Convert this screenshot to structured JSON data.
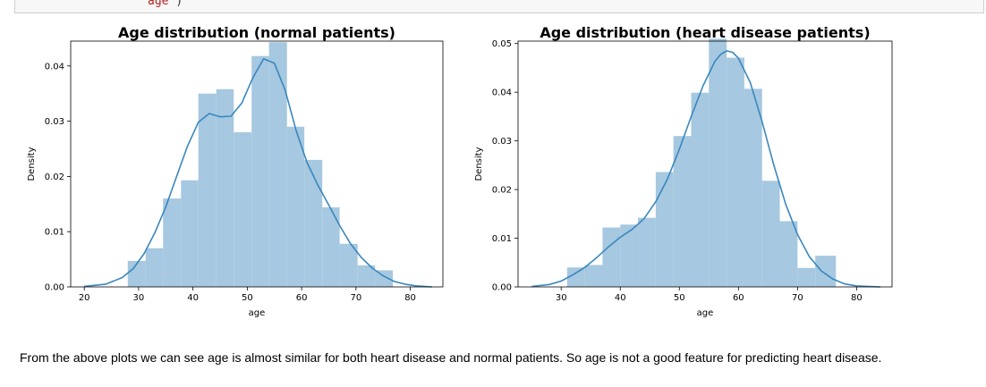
{
  "code_cell": {
    "text": "age",
    "close_paren": ")"
  },
  "conclusion": "From the above plots we can see age is almost similar for both heart disease and normal patients. So age is not a good feature for predicting heart disease.",
  "colors": {
    "bar_fill": "#a6c8e0",
    "kde_line": "#3a87bd"
  },
  "chart_data": [
    {
      "type": "bar",
      "title": "Age distribution (normal patients)",
      "xlabel": "age",
      "ylabel": "Density",
      "xlim": [
        17.5,
        86
      ],
      "ylim": [
        0,
        0.0445
      ],
      "xticks": [
        20,
        30,
        40,
        50,
        60,
        70,
        80
      ],
      "yticks": [
        0.0,
        0.01,
        0.02,
        0.03,
        0.04
      ],
      "ytick_labels": [
        "0.00",
        "0.01",
        "0.02",
        "0.03",
        "0.04"
      ],
      "bins": [
        {
          "x0": 28.0,
          "x1": 31.3,
          "value": 0.0047
        },
        {
          "x0": 31.3,
          "x1": 34.5,
          "value": 0.007
        },
        {
          "x0": 34.5,
          "x1": 37.8,
          "value": 0.016
        },
        {
          "x0": 37.8,
          "x1": 41.0,
          "value": 0.0193
        },
        {
          "x0": 41.0,
          "x1": 44.3,
          "value": 0.035
        },
        {
          "x0": 44.3,
          "x1": 47.5,
          "value": 0.0358
        },
        {
          "x0": 47.5,
          "x1": 50.8,
          "value": 0.028
        },
        {
          "x0": 50.8,
          "x1": 54.0,
          "value": 0.0418
        },
        {
          "x0": 54.0,
          "x1": 57.3,
          "value": 0.0443
        },
        {
          "x0": 57.3,
          "x1": 60.5,
          "value": 0.029
        },
        {
          "x0": 60.5,
          "x1": 63.8,
          "value": 0.023
        },
        {
          "x0": 63.8,
          "x1": 67.0,
          "value": 0.0144
        },
        {
          "x0": 67.0,
          "x1": 70.3,
          "value": 0.0078
        },
        {
          "x0": 70.3,
          "x1": 73.5,
          "value": 0.0039
        },
        {
          "x0": 73.5,
          "x1": 76.8,
          "value": 0.003
        }
      ],
      "kde": {
        "x": [
          20,
          24,
          27,
          29,
          31,
          33,
          35,
          37,
          39,
          41,
          43,
          45,
          47,
          49,
          51,
          53,
          55,
          57,
          59,
          61,
          63,
          65,
          67,
          69,
          71,
          73,
          75,
          77,
          79,
          81,
          84
        ],
        "y": [
          0.0001,
          0.0005,
          0.0017,
          0.0033,
          0.006,
          0.0098,
          0.0145,
          0.02,
          0.0255,
          0.0298,
          0.0314,
          0.0308,
          0.0309,
          0.0333,
          0.0378,
          0.0413,
          0.0405,
          0.0355,
          0.0283,
          0.0225,
          0.0184,
          0.0148,
          0.0111,
          0.0078,
          0.0053,
          0.0034,
          0.002,
          0.001,
          0.0005,
          0.0002,
          0.0
        ]
      }
    },
    {
      "type": "bar",
      "title": "Age distribution (heart disease patients)",
      "xlabel": "age",
      "ylabel": "Density",
      "xlim": [
        22.7,
        86
      ],
      "ylim": [
        0,
        0.0505
      ],
      "xticks": [
        30,
        40,
        50,
        60,
        70,
        80
      ],
      "yticks": [
        0.0,
        0.01,
        0.02,
        0.03,
        0.04,
        0.05
      ],
      "ytick_labels": [
        "0.00",
        "0.01",
        "0.02",
        "0.03",
        "0.04",
        "0.05"
      ],
      "bins": [
        {
          "x0": 31.0,
          "x1": 34.0,
          "value": 0.004
        },
        {
          "x0": 34.0,
          "x1": 37.0,
          "value": 0.0045
        },
        {
          "x0": 37.0,
          "x1": 40.0,
          "value": 0.0122
        },
        {
          "x0": 40.0,
          "x1": 43.0,
          "value": 0.0128
        },
        {
          "x0": 43.0,
          "x1": 46.0,
          "value": 0.0142
        },
        {
          "x0": 46.0,
          "x1": 49.0,
          "value": 0.0236
        },
        {
          "x0": 49.0,
          "x1": 52.0,
          "value": 0.031
        },
        {
          "x0": 52.0,
          "x1": 55.0,
          "value": 0.0399
        },
        {
          "x0": 55.0,
          "x1": 58.0,
          "value": 0.051
        },
        {
          "x0": 58.0,
          "x1": 61.0,
          "value": 0.0471
        },
        {
          "x0": 61.0,
          "x1": 64.0,
          "value": 0.0407
        },
        {
          "x0": 64.0,
          "x1": 67.0,
          "value": 0.0218
        },
        {
          "x0": 67.0,
          "x1": 70.0,
          "value": 0.0135
        },
        {
          "x0": 70.0,
          "x1": 73.0,
          "value": 0.0039
        },
        {
          "x0": 73.0,
          "x1": 76.5,
          "value": 0.0064
        }
      ],
      "kde": {
        "x": [
          25,
          28,
          30,
          32,
          34,
          36,
          38,
          40,
          42,
          44,
          46,
          48,
          50,
          52,
          54,
          56,
          57,
          58,
          59,
          60,
          62,
          64,
          66,
          68,
          70,
          72,
          74,
          76,
          78,
          80,
          84
        ],
        "y": [
          0.0001,
          0.0005,
          0.0012,
          0.0025,
          0.004,
          0.006,
          0.0082,
          0.0102,
          0.0118,
          0.014,
          0.0175,
          0.0222,
          0.0283,
          0.035,
          0.0413,
          0.0463,
          0.0478,
          0.0485,
          0.0482,
          0.047,
          0.042,
          0.034,
          0.025,
          0.017,
          0.0108,
          0.0062,
          0.0033,
          0.0016,
          0.0006,
          0.0002,
          0.0
        ]
      }
    }
  ]
}
